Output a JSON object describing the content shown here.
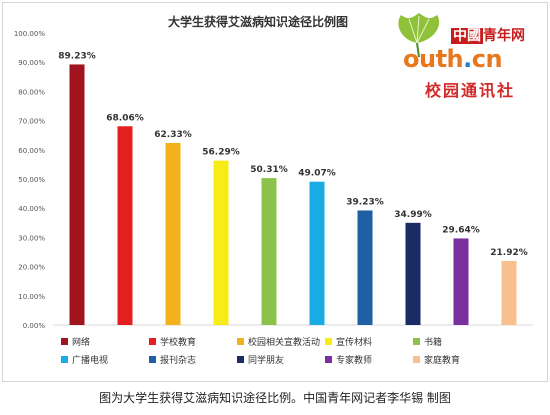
{
  "chart_data": {
    "type": "bar",
    "title": "大学生获得艾滋病知识途径比例图",
    "categories": [
      "网络",
      "学校教育",
      "校园相关宣教活动",
      "宣传材料",
      "书籍",
      "广播电视",
      "报刊杂志",
      "同学朋友",
      "专家教师",
      "家庭教育"
    ],
    "values": [
      89.23,
      68.06,
      62.33,
      56.29,
      50.31,
      49.07,
      39.23,
      34.99,
      29.64,
      21.92
    ],
    "value_labels": [
      "89.23%",
      "68.06%",
      "62.33%",
      "56.29%",
      "50.31%",
      "49.07%",
      "39.23%",
      "34.99%",
      "29.64%",
      "21.92%"
    ],
    "colors": [
      "#a0141d",
      "#e3201f",
      "#f2b21b",
      "#f7ec15",
      "#8bc34a",
      "#19abe3",
      "#1f5fa3",
      "#1b2b64",
      "#7b2f9f",
      "#f7c08e"
    ],
    "ylim": [
      0,
      100
    ],
    "yticks": [
      "0.00%",
      "10.00%",
      "20.00%",
      "30.00%",
      "40.00%",
      "50.00%",
      "60.00%",
      "70.00%",
      "80.00%",
      "90.00%",
      "100.00%"
    ],
    "grid": false,
    "legend_position": "bottom",
    "xlabel": "",
    "ylabel": ""
  },
  "logo": {
    "brand_cn_box": "中國",
    "brand_cn": "青年网",
    "site_main": "outh",
    "site_dot": ".",
    "site_tail": "cn",
    "subtitle": "校园通讯社"
  },
  "caption": "图为大学生获得艾滋病知识途径比例。中国青年网记者李华锡 制图"
}
